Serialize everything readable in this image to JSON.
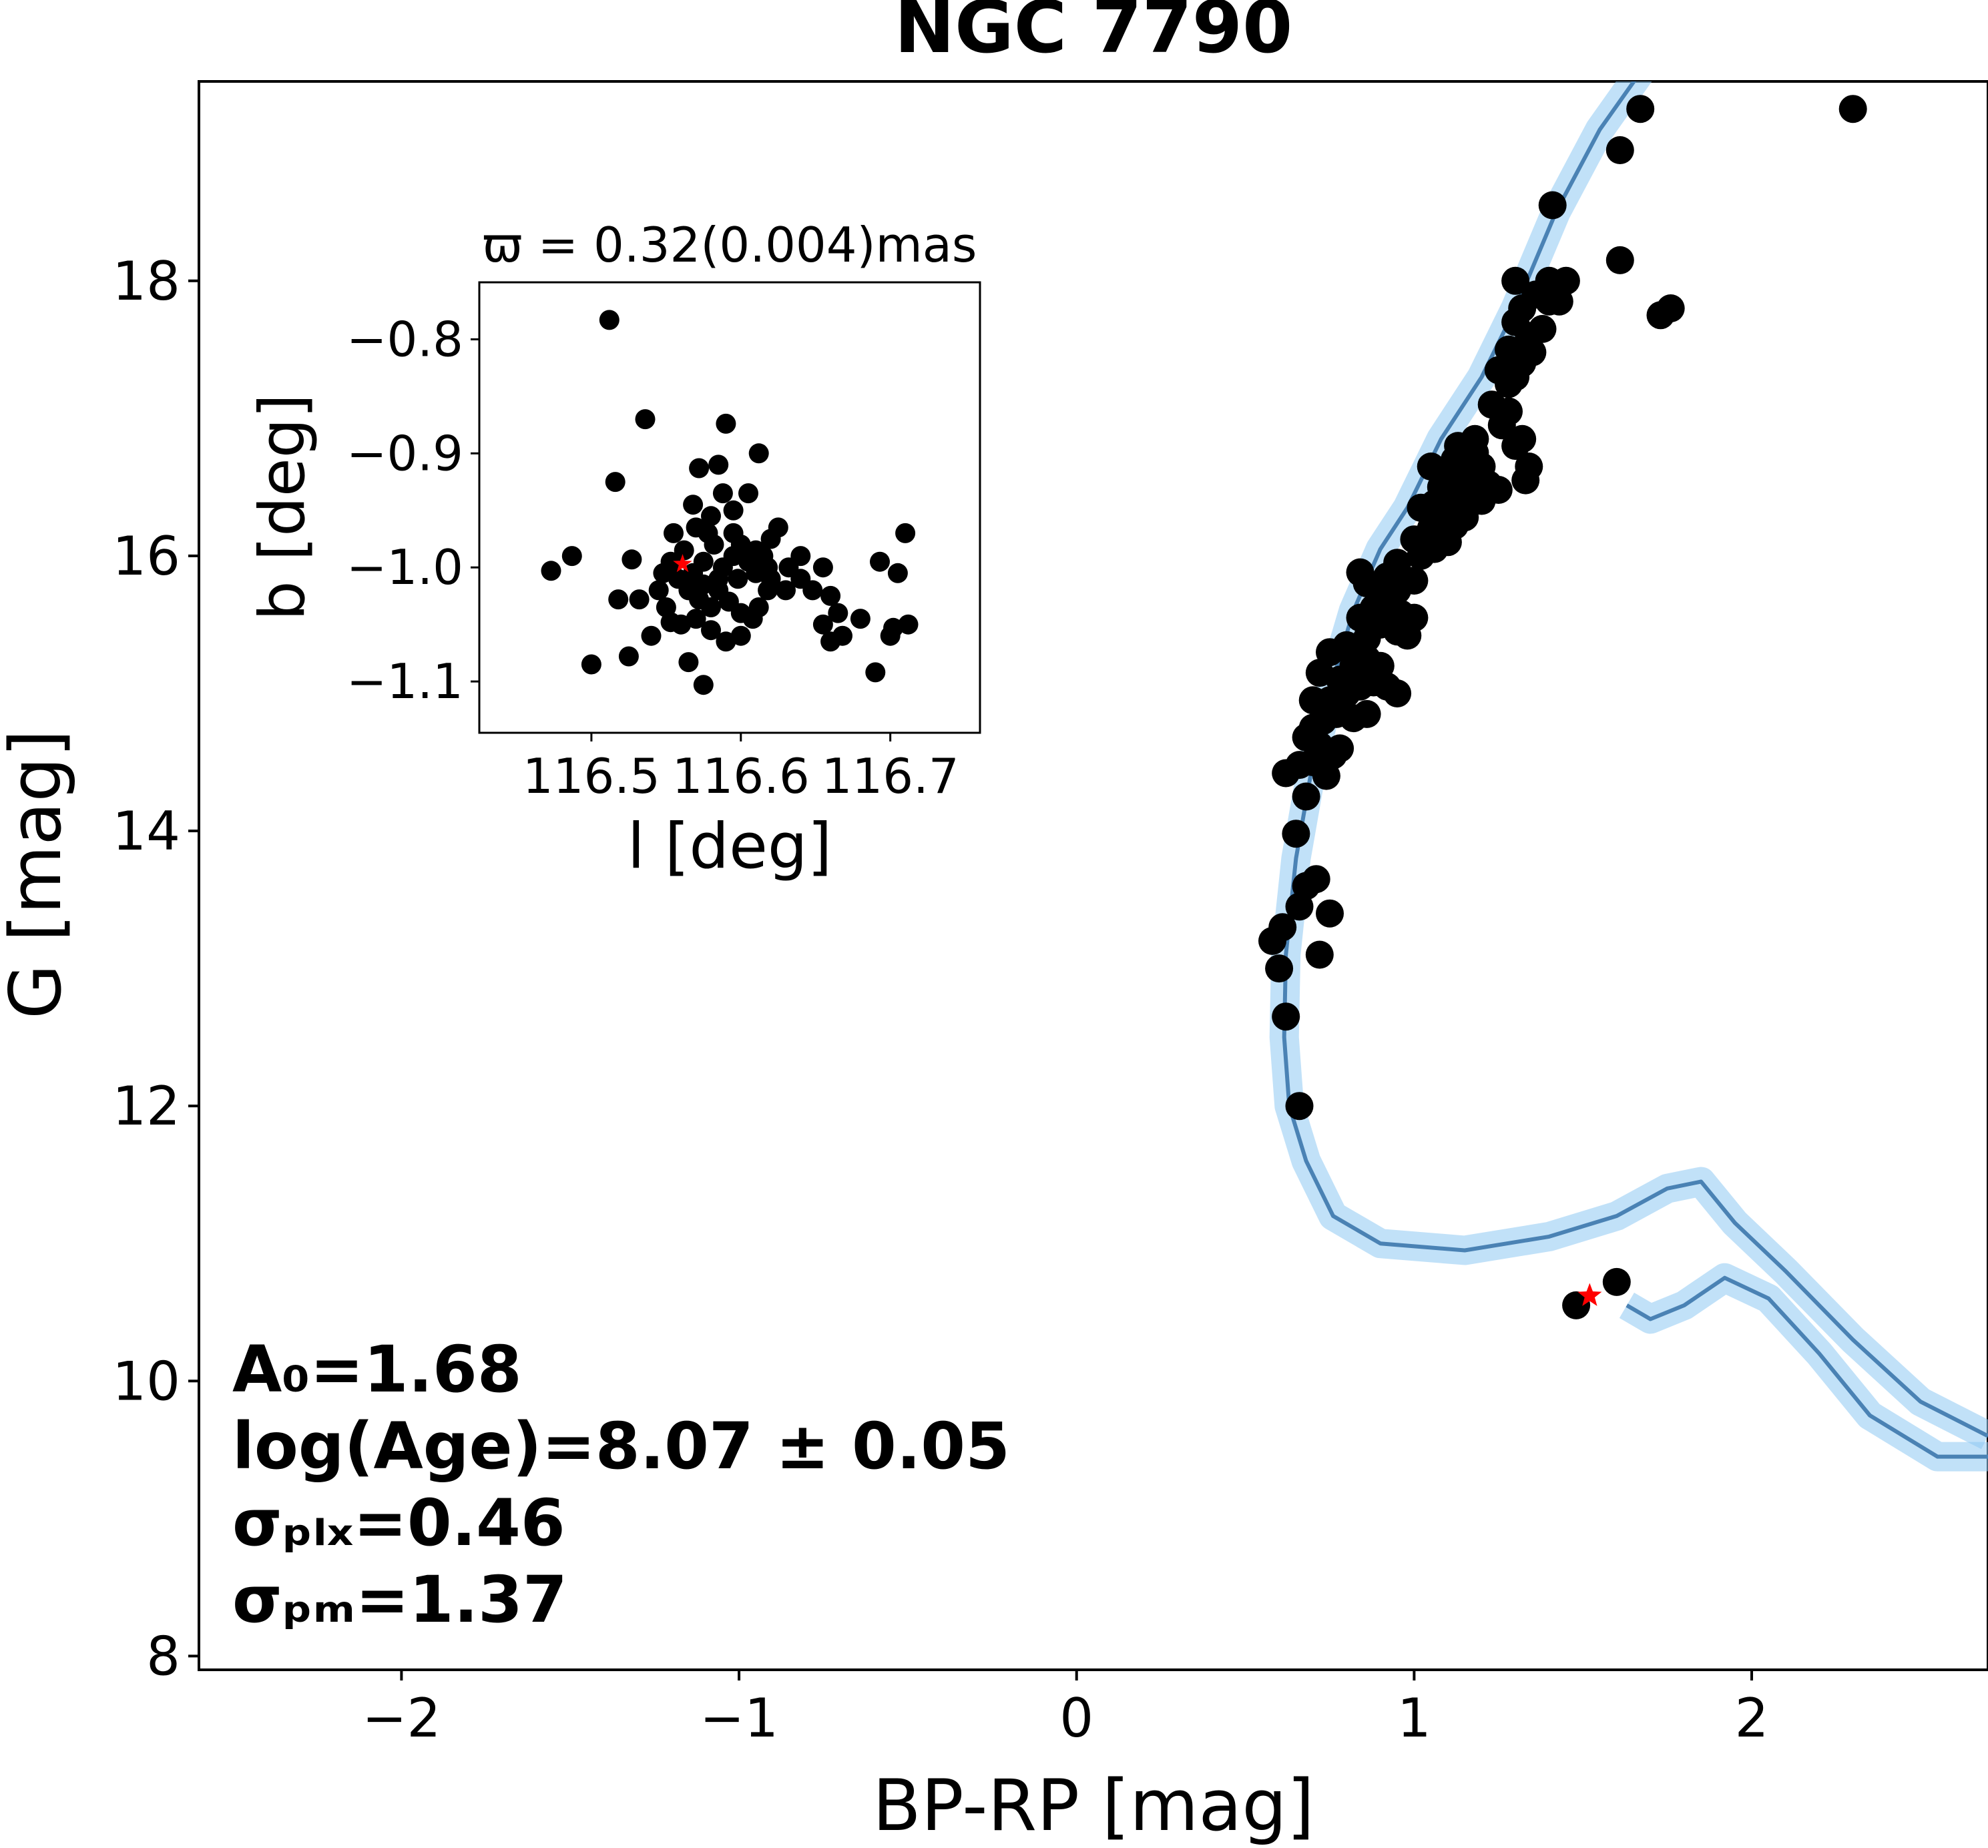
{
  "chart_data": {
    "type": "scatter",
    "title": "NGC 7790",
    "xlabel": "BP-RP [mag]",
    "ylabel": "G [mag]",
    "xlim": [
      -2.6,
      2.7
    ],
    "ylim": [
      19.45,
      7.9
    ],
    "y_inverted": true,
    "xticks": [
      -2,
      -1,
      0,
      1,
      2
    ],
    "xtick_labels": [
      "−2",
      "−1",
      "0",
      "1",
      "2"
    ],
    "yticks": [
      8,
      10,
      12,
      14,
      16,
      18
    ],
    "ytick_labels": [
      "8",
      "10",
      "12",
      "14",
      "16",
      "18"
    ],
    "colors": {
      "points": "#000000",
      "isochrone": "#4a82b4",
      "band": "#8ec8f2",
      "star": "#ff0000"
    },
    "annotations": {
      "A0": "A₀=1.68",
      "age": "log(Age)=8.07 ± 0.05",
      "sigma_plx": "σₚₗₓ=0.46",
      "sigma_pm": "σₚₘ=1.37"
    },
    "cepheid": {
      "x": 1.52,
      "y": 10.62
    },
    "points": [
      [
        0.66,
        12.0
      ],
      [
        0.62,
        12.65
      ],
      [
        0.6,
        13.0
      ],
      [
        0.58,
        13.2
      ],
      [
        0.61,
        13.3
      ],
      [
        0.72,
        13.1
      ],
      [
        0.66,
        13.45
      ],
      [
        0.75,
        13.4
      ],
      [
        0.68,
        13.6
      ],
      [
        0.71,
        13.65
      ],
      [
        0.65,
        13.98
      ],
      [
        0.68,
        14.25
      ],
      [
        0.62,
        14.42
      ],
      [
        0.66,
        14.48
      ],
      [
        0.7,
        14.5
      ],
      [
        0.74,
        14.4
      ],
      [
        0.76,
        14.55
      ],
      [
        0.78,
        14.6
      ],
      [
        0.72,
        14.62
      ],
      [
        0.68,
        14.68
      ],
      [
        0.7,
        14.75
      ],
      [
        0.73,
        14.8
      ],
      [
        0.77,
        14.85
      ],
      [
        0.82,
        14.82
      ],
      [
        0.86,
        14.85
      ],
      [
        0.75,
        14.95
      ],
      [
        0.7,
        14.95
      ],
      [
        0.8,
        15.0
      ],
      [
        0.84,
        15.05
      ],
      [
        0.88,
        15.08
      ],
      [
        0.92,
        15.05
      ],
      [
        0.95,
        15.0
      ],
      [
        0.78,
        15.1
      ],
      [
        0.72,
        15.15
      ],
      [
        0.82,
        15.2
      ],
      [
        0.86,
        15.25
      ],
      [
        0.9,
        15.2
      ],
      [
        0.75,
        15.3
      ],
      [
        0.8,
        15.35
      ],
      [
        0.86,
        15.4
      ],
      [
        0.95,
        15.45
      ],
      [
        0.98,
        15.42
      ],
      [
        0.9,
        15.5
      ],
      [
        0.84,
        15.55
      ],
      [
        0.88,
        15.62
      ],
      [
        0.92,
        15.6
      ],
      [
        0.96,
        15.58
      ],
      [
        1.0,
        15.55
      ],
      [
        0.9,
        15.7
      ],
      [
        0.95,
        15.75
      ],
      [
        0.86,
        15.8
      ],
      [
        0.92,
        15.85
      ],
      [
        1.0,
        15.82
      ],
      [
        0.84,
        15.88
      ],
      [
        0.95,
        15.95
      ],
      [
        1.02,
        16.0
      ],
      [
        1.06,
        16.05
      ],
      [
        1.0,
        16.12
      ],
      [
        1.1,
        16.1
      ],
      [
        1.05,
        16.2
      ],
      [
        1.12,
        16.22
      ],
      [
        1.08,
        16.3
      ],
      [
        1.15,
        16.28
      ],
      [
        1.02,
        16.35
      ],
      [
        1.06,
        16.38
      ],
      [
        1.1,
        16.4
      ],
      [
        1.15,
        16.42
      ],
      [
        1.2,
        16.4
      ],
      [
        1.08,
        16.5
      ],
      [
        1.12,
        16.52
      ],
      [
        1.18,
        16.55
      ],
      [
        1.22,
        16.52
      ],
      [
        1.25,
        16.48
      ],
      [
        1.1,
        16.6
      ],
      [
        1.15,
        16.62
      ],
      [
        1.2,
        16.65
      ],
      [
        1.05,
        16.65
      ],
      [
        1.12,
        16.7
      ],
      [
        1.18,
        16.75
      ],
      [
        1.13,
        16.8
      ],
      [
        1.18,
        16.85
      ],
      [
        1.3,
        16.8
      ],
      [
        1.26,
        16.95
      ],
      [
        1.32,
        16.85
      ],
      [
        1.34,
        16.65
      ],
      [
        1.33,
        16.55
      ],
      [
        1.28,
        17.05
      ],
      [
        1.23,
        17.1
      ],
      [
        1.28,
        17.25
      ],
      [
        1.3,
        17.3
      ],
      [
        1.25,
        17.35
      ],
      [
        1.32,
        17.4
      ],
      [
        1.28,
        17.5
      ],
      [
        1.35,
        17.48
      ],
      [
        1.34,
        17.6
      ],
      [
        1.3,
        17.7
      ],
      [
        1.38,
        17.65
      ],
      [
        1.32,
        17.8
      ],
      [
        1.4,
        17.85
      ],
      [
        1.36,
        17.9
      ],
      [
        1.43,
        17.85
      ],
      [
        1.3,
        18.0
      ],
      [
        1.4,
        18.0
      ],
      [
        1.45,
        18.0
      ],
      [
        1.41,
        18.55
      ],
      [
        1.61,
        18.15
      ],
      [
        1.61,
        18.95
      ],
      [
        1.67,
        19.25
      ],
      [
        1.73,
        17.75
      ],
      [
        1.76,
        17.8
      ],
      [
        2.3,
        19.25
      ],
      [
        1.48,
        10.55
      ],
      [
        1.6,
        10.72
      ]
    ]
  },
  "inset": {
    "title": "ϖ = 0.32(0.004)mas",
    "xlabel": "l [deg]",
    "ylabel": "b [deg]",
    "xlim": [
      116.425,
      116.76
    ],
    "ylim": [
      -1.145,
      -0.75
    ],
    "xticks": [
      116.5,
      116.6,
      116.7
    ],
    "xtick_labels": [
      "116.5",
      "116.6",
      "116.7"
    ],
    "yticks": [
      -0.8,
      -0.9,
      -1.0,
      -1.1
    ],
    "ytick_labels": [
      "−0.8",
      "−0.9",
      "−1.0",
      "−1.1"
    ],
    "cepheid": {
      "l": 116.561,
      "b": -0.997
    },
    "points": [
      [
        116.512,
        -0.783
      ],
      [
        116.536,
        -0.87
      ],
      [
        116.516,
        -0.925
      ],
      [
        116.59,
        -0.874
      ],
      [
        116.612,
        -0.9
      ],
      [
        116.585,
        -0.91
      ],
      [
        116.572,
        -0.913
      ],
      [
        116.588,
        -0.935
      ],
      [
        116.605,
        -0.935
      ],
      [
        116.568,
        -0.945
      ],
      [
        116.58,
        -0.955
      ],
      [
        116.473,
        -1.003
      ],
      [
        116.487,
        -0.99
      ],
      [
        116.5,
        -1.085
      ],
      [
        116.525,
        -1.078
      ],
      [
        116.565,
        -1.083
      ],
      [
        116.575,
        -1.103
      ],
      [
        116.527,
        -0.993
      ],
      [
        116.518,
        -1.028
      ],
      [
        116.532,
        -1.028
      ],
      [
        116.545,
        -1.02
      ],
      [
        116.55,
        -1.035
      ],
      [
        116.553,
        -1.048
      ],
      [
        116.54,
        -1.06
      ],
      [
        116.57,
        -0.965
      ],
      [
        116.578,
        -0.97
      ],
      [
        116.582,
        -0.98
      ],
      [
        116.595,
        -0.97
      ],
      [
        116.6,
        -0.98
      ],
      [
        116.61,
        -0.985
      ],
      [
        116.62,
        -0.975
      ],
      [
        116.625,
        -0.965
      ],
      [
        116.64,
        -0.99
      ],
      [
        116.632,
        -1.0
      ],
      [
        116.618,
        -1.0
      ],
      [
        116.61,
        -1.005
      ],
      [
        116.598,
        -1.01
      ],
      [
        116.588,
        -1.0
      ],
      [
        116.575,
        -0.995
      ],
      [
        116.568,
        -1.005
      ],
      [
        116.558,
        -1.01
      ],
      [
        116.565,
        -1.02
      ],
      [
        116.572,
        -1.028
      ],
      [
        116.58,
        -1.035
      ],
      [
        116.592,
        -1.03
      ],
      [
        116.6,
        -1.04
      ],
      [
        116.612,
        -1.035
      ],
      [
        116.618,
        -1.02
      ],
      [
        116.57,
        -1.045
      ],
      [
        116.56,
        -1.05
      ],
      [
        116.58,
        -1.055
      ],
      [
        116.59,
        -1.065
      ],
      [
        116.6,
        -1.06
      ],
      [
        116.608,
        -1.045
      ],
      [
        116.64,
        -1.01
      ],
      [
        116.648,
        -1.02
      ],
      [
        116.655,
        -1.0
      ],
      [
        116.66,
        -1.025
      ],
      [
        116.665,
        -1.04
      ],
      [
        116.655,
        -1.05
      ],
      [
        116.668,
        -1.06
      ],
      [
        116.68,
        -1.045
      ],
      [
        116.66,
        -1.065
      ],
      [
        116.69,
        -1.092
      ],
      [
        116.693,
        -0.995
      ],
      [
        116.71,
        -0.97
      ],
      [
        116.705,
        -1.005
      ],
      [
        116.702,
        -1.053
      ],
      [
        116.712,
        -1.05
      ],
      [
        116.7,
        -1.06
      ],
      [
        116.585,
        -1.01
      ],
      [
        116.595,
        -0.99
      ],
      [
        116.605,
        -0.995
      ],
      [
        116.615,
        -0.99
      ],
      [
        116.562,
        -0.985
      ],
      [
        116.553,
        -0.995
      ],
      [
        116.548,
        -1.005
      ],
      [
        116.575,
        -1.015
      ],
      [
        116.585,
        -1.02
      ],
      [
        116.62,
        -1.01
      ],
      [
        116.63,
        -1.02
      ],
      [
        116.555,
        -0.97
      ],
      [
        116.595,
        -0.95
      ]
    ]
  }
}
